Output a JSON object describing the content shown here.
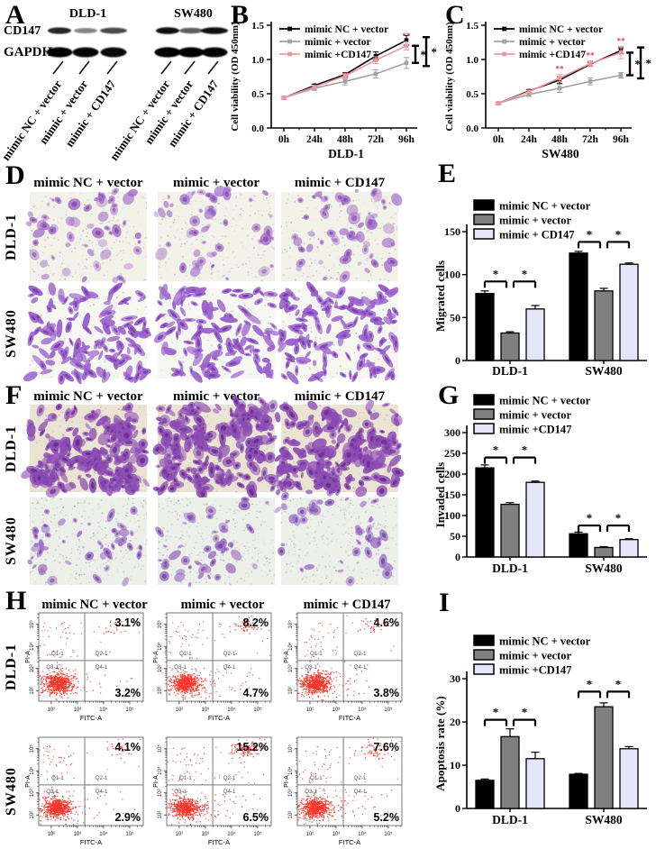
{
  "figure": {
    "panels": {
      "A": {
        "label": "A",
        "cell_lines": [
          "DLD-1",
          "SW480"
        ],
        "protein_rows": [
          "CD147",
          "GAPDH"
        ],
        "lane_labels": [
          "mimic NC + vector",
          "mimic + vector",
          "mimic + CD147"
        ],
        "band_intensities": {
          "CD147": [
            0.8,
            0.3,
            0.62,
            0.92,
            0.5,
            0.9
          ],
          "GAPDH": [
            1,
            0.95,
            0.9,
            1,
            1,
            0.95
          ]
        }
      },
      "B": {
        "label": "B"
      },
      "C": {
        "label": "C"
      },
      "D": {
        "label": "D",
        "col_headers": [
          "mimic NC + vector",
          "mimic + vector",
          "mimic + CD147"
        ],
        "row_labels": [
          "DLD-1",
          "SW480"
        ],
        "tiles": [
          {
            "cells": 58,
            "clusters": 6,
            "rmin": 2,
            "rmax": 7,
            "aspect": [
              0.6,
              1.6
            ],
            "color": "#a06cc8",
            "nucleus": "#8a4fb8",
            "bg": "#f2f2e8",
            "speckles": 260,
            "alpha": [
              0.35,
              0.85
            ]
          },
          {
            "cells": 125,
            "clusters": 0,
            "rmin": 2.8,
            "rmax": 6.2,
            "aspect": [
              1.6,
              3.4
            ],
            "color": "#9a63cc",
            "nucleus": "#7d3fb2",
            "bg": "#f7f7f2",
            "speckles": 120,
            "alpha": [
              0.65,
              1
            ]
          }
        ]
      },
      "E": {
        "label": "E"
      },
      "F": {
        "label": "F",
        "col_headers": [
          "mimic NC + vector",
          "mimic + vector",
          "mimic + CD147"
        ],
        "row_labels": [
          "DLD-1",
          "SW480"
        ],
        "tiles": [
          {
            "cells": 235,
            "clusters": 8,
            "rmin": 2.4,
            "rmax": 7,
            "aspect": [
              0.8,
              2.4
            ],
            "color": "#8b4cb4",
            "nucleus": "#6d2f96",
            "bg": "#ece4d2",
            "speckles": 210,
            "alpha": [
              0.5,
              0.95
            ]
          },
          {
            "cells": 48,
            "clusters": 3,
            "rmin": 2,
            "rmax": 6,
            "aspect": [
              0.8,
              2.2
            ],
            "color": "#9a6fc4",
            "nucleus": "#7c48aa",
            "bg": "#edefe9",
            "speckles": 380,
            "alpha": [
              0.45,
              0.9
            ]
          }
        ]
      },
      "G": {
        "label": "G"
      },
      "H": {
        "label": "H"
      },
      "I": {
        "label": "I"
      }
    }
  },
  "chart_data": [
    {
      "id": "B",
      "type": "line",
      "xlabel": "DLD-1",
      "ylabel": "Cell viability (OD 450nm)",
      "x": [
        "0h",
        "24h",
        "48h",
        "72h",
        "96h"
      ],
      "ylim": [
        0,
        1.5
      ],
      "yticks": [
        0,
        0.5,
        1.0,
        1.5
      ],
      "legend_position": "top-left",
      "grid": false,
      "series": [
        {
          "name": "mimic NC + vector",
          "color": "#000000",
          "values": [
            0.44,
            0.62,
            0.78,
            1.05,
            1.28
          ],
          "errors": [
            0.02,
            0.02,
            0.03,
            0.06,
            0.07
          ]
        },
        {
          "name": "mimic + vector",
          "color": "#a3a3a3",
          "values": [
            0.44,
            0.58,
            0.68,
            0.79,
            0.95
          ],
          "errors": [
            0.02,
            0.03,
            0.05,
            0.06,
            0.08
          ]
        },
        {
          "name": "mimic +CD147",
          "color": "#f0989f",
          "values": [
            0.44,
            0.6,
            0.76,
            0.99,
            1.2
          ],
          "errors": [
            0.02,
            0.02,
            0.04,
            0.05,
            0.06
          ]
        }
      ],
      "point_flags": [
        {
          "series": 2,
          "x_index": 4,
          "text": "**"
        }
      ],
      "sig_brackets": [
        {
          "top_series": 2,
          "bottom_series": 1,
          "label": "*"
        },
        {
          "top_series": 0,
          "bottom_series": 1,
          "label": "*"
        }
      ]
    },
    {
      "id": "C",
      "type": "line",
      "xlabel": "SW480",
      "ylabel": "Cell viability (OD 450nm)",
      "x": [
        "0h",
        "24h",
        "48h",
        "72h",
        "96h"
      ],
      "ylim": [
        0,
        1.5
      ],
      "yticks": [
        0,
        0.5,
        1.0,
        1.5
      ],
      "legend_position": "top-left",
      "grid": false,
      "series": [
        {
          "name": "mimic NC + vector",
          "color": "#000000",
          "values": [
            0.36,
            0.54,
            0.7,
            0.93,
            1.13
          ],
          "errors": [
            0.015,
            0.02,
            0.05,
            0.03,
            0.04
          ]
        },
        {
          "name": "mimic + vector",
          "color": "#a3a3a3",
          "values": [
            0.36,
            0.49,
            0.58,
            0.68,
            0.77
          ],
          "errors": [
            0.015,
            0.03,
            0.06,
            0.05,
            0.04
          ]
        },
        {
          "name": "mimic +CD147",
          "color": "#f0989f",
          "values": [
            0.36,
            0.53,
            0.73,
            0.94,
            1.1
          ],
          "errors": [
            0.015,
            0.02,
            0.05,
            0.04,
            0.09
          ]
        }
      ],
      "point_flags": [
        {
          "series": 2,
          "x_index": 2,
          "text": "**"
        },
        {
          "series": 2,
          "x_index": 3,
          "text": "**"
        },
        {
          "series": 2,
          "x_index": 4,
          "text": "**"
        }
      ],
      "sig_brackets": [
        {
          "top_series": 2,
          "bottom_series": 1,
          "label": "*"
        },
        {
          "top_series": 0,
          "bottom_series": 1,
          "label": "*"
        }
      ]
    },
    {
      "id": "E",
      "type": "bar",
      "ylabel": "Migrated cells",
      "categories": [
        "DLD-1",
        "SW480"
      ],
      "ylim": [
        0,
        150
      ],
      "yticks": [
        0,
        50,
        100,
        150
      ],
      "series": [
        {
          "name": "mimic NC + vector",
          "color": "#000000",
          "values": [
            78,
            125
          ],
          "errors": [
            3,
            2
          ]
        },
        {
          "name": "mimic + vector",
          "color": "#808080",
          "values": [
            32,
            81
          ],
          "errors": [
            1.5,
            3
          ]
        },
        {
          "name": "mimic + CD147",
          "color": "#e6e6fa",
          "values": [
            60,
            112
          ],
          "errors": [
            4,
            1.5
          ]
        }
      ],
      "sig": [
        {
          "group": 0,
          "y": 92,
          "labels": [
            "*",
            "*"
          ]
        },
        {
          "group": 1,
          "y": 138,
          "labels": [
            "*",
            "*"
          ]
        }
      ]
    },
    {
      "id": "G",
      "type": "bar",
      "ylabel": "Invaded cells",
      "categories": [
        "DLD-1",
        "SW480"
      ],
      "ylim": [
        0,
        300
      ],
      "yticks": [
        0,
        50,
        100,
        150,
        200,
        250,
        300
      ],
      "series": [
        {
          "name": "mimic NC + vector",
          "color": "#000000",
          "values": [
            215,
            56
          ],
          "errors": [
            7,
            4
          ]
        },
        {
          "name": "mimic + vector",
          "color": "#808080",
          "values": [
            127,
            23
          ],
          "errors": [
            4,
            2
          ]
        },
        {
          "name": "mimic +CD147",
          "color": "#e6e6fa",
          "values": [
            180,
            42
          ],
          "errors": [
            3,
            2
          ]
        }
      ],
      "sig": [
        {
          "group": 0,
          "y": 240,
          "labels": [
            "*",
            "*"
          ]
        },
        {
          "group": 1,
          "y": 76,
          "labels": [
            "*",
            "*"
          ]
        }
      ]
    },
    {
      "id": "I",
      "type": "bar",
      "ylabel": "Apoptosis rate (%)",
      "categories": [
        "DLD-1",
        "SW480"
      ],
      "ylim": [
        0,
        30
      ],
      "yticks": [
        0,
        10,
        20,
        30
      ],
      "series": [
        {
          "name": "mimic NC + vector",
          "color": "#000000",
          "values": [
            6.5,
            7.9
          ],
          "errors": [
            0.3,
            0.2
          ]
        },
        {
          "name": "mimic + vector",
          "color": "#808080",
          "values": [
            16.6,
            23.5
          ],
          "errors": [
            1.8,
            0.9
          ]
        },
        {
          "name": "mimic +CD147",
          "color": "#e6e6fa",
          "values": [
            11.5,
            13.8
          ],
          "errors": [
            1.5,
            0.5
          ]
        }
      ],
      "sig": [
        {
          "group": 0,
          "y": 20.5,
          "labels": [
            "*",
            "*"
          ]
        },
        {
          "group": 1,
          "y": 27,
          "labels": [
            "*",
            "*"
          ]
        }
      ]
    },
    {
      "id": "H",
      "type": "scatter",
      "subtype": "flow-cytometry-apoptosis",
      "xlabel": "FITC-A",
      "ylabel": "PI-A",
      "tick_labels": [
        "10²",
        "10³",
        "10⁴",
        "10⁵"
      ],
      "quadrant_labels": [
        "Q1-1",
        "Q2-1",
        "Q3-1",
        "Q4-1"
      ],
      "dot_color": "#f91408",
      "rows": [
        "DLD-1",
        "SW480"
      ],
      "cols": [
        "mimic NC + vector",
        "mimic + vector",
        "mimic + CD147"
      ],
      "plots": [
        {
          "row": "DLD-1",
          "col": "mimic NC + vector",
          "q2_pct": "3.1%",
          "q4_pct": "3.2%"
        },
        {
          "row": "DLD-1",
          "col": "mimic + vector",
          "q2_pct": "8.2%",
          "q4_pct": "4.7%"
        },
        {
          "row": "DLD-1",
          "col": "mimic + CD147",
          "q2_pct": "4.6%",
          "q4_pct": "3.8%"
        },
        {
          "row": "SW480",
          "col": "mimic NC + vector",
          "q2_pct": "4.1%",
          "q4_pct": "2.9%"
        },
        {
          "row": "SW480",
          "col": "mimic + vector",
          "q2_pct": "15.2%",
          "q4_pct": "6.5%"
        },
        {
          "row": "SW480",
          "col": "mimic + CD147",
          "q2_pct": "7.6%",
          "q4_pct": "5.2%"
        }
      ]
    }
  ]
}
